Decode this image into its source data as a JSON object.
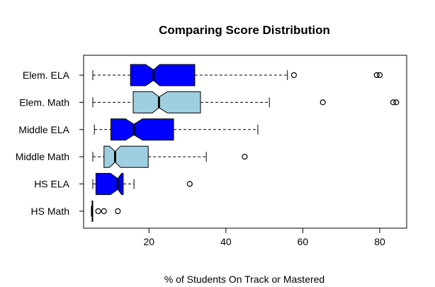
{
  "chart_data": {
    "type": "boxplot",
    "orientation": "horizontal",
    "notched": true,
    "title": "Comparing Score Distribution",
    "xlabel": "% of Students On Track or Mastered",
    "ylabel": "",
    "xlim": [
      3,
      87
    ],
    "xticks": [
      20,
      40,
      60,
      80
    ],
    "colors": {
      "dark": "#0000FF",
      "light": "#9ECFE0"
    },
    "series": [
      {
        "name": "HS Math",
        "color": "dark",
        "whisker_low": 5.2,
        "q1": 5.2,
        "median": 5.2,
        "q3": 5.4,
        "whisker_high": 5.4,
        "notch_low": 5.2,
        "notch_high": 5.4,
        "outliers": [
          6.8,
          8.3,
          11.9
        ]
      },
      {
        "name": "HS ELA",
        "color": "dark",
        "whisker_low": 5.4,
        "q1": 6.2,
        "median": 11.9,
        "q3": 13.3,
        "whisker_high": 16.1,
        "notch_low": 10.0,
        "notch_high": 12.9,
        "outliers": [
          30.6
        ]
      },
      {
        "name": "Middle Math",
        "color": "light",
        "whisker_low": 5.4,
        "q1": 8.3,
        "median": 11.2,
        "q3": 19.8,
        "whisker_high": 34.9,
        "notch_low": 9.7,
        "notch_high": 12.6,
        "outliers": [
          44.9
        ]
      },
      {
        "name": "Middle ELA",
        "color": "dark",
        "whisker_low": 5.8,
        "q1": 10.1,
        "median": 16.1,
        "q3": 26.4,
        "whisker_high": 48.3,
        "notch_low": 13.9,
        "notch_high": 18.3,
        "outliers": []
      },
      {
        "name": "Elem. Math",
        "color": "light",
        "whisker_low": 5.4,
        "q1": 15.9,
        "median": 22.6,
        "q3": 33.4,
        "whisker_high": 51.3,
        "notch_low": 20.9,
        "notch_high": 24.8,
        "outliers": [
          65.2,
          83.5,
          84.3
        ]
      },
      {
        "name": "Elem. ELA",
        "color": "dark",
        "whisker_low": 5.4,
        "q1": 15.2,
        "median": 21.2,
        "q3": 31.9,
        "whisker_high": 56.0,
        "notch_low": 19.1,
        "notch_high": 22.8,
        "outliers": [
          57.7,
          79.2,
          80.0
        ]
      }
    ]
  }
}
